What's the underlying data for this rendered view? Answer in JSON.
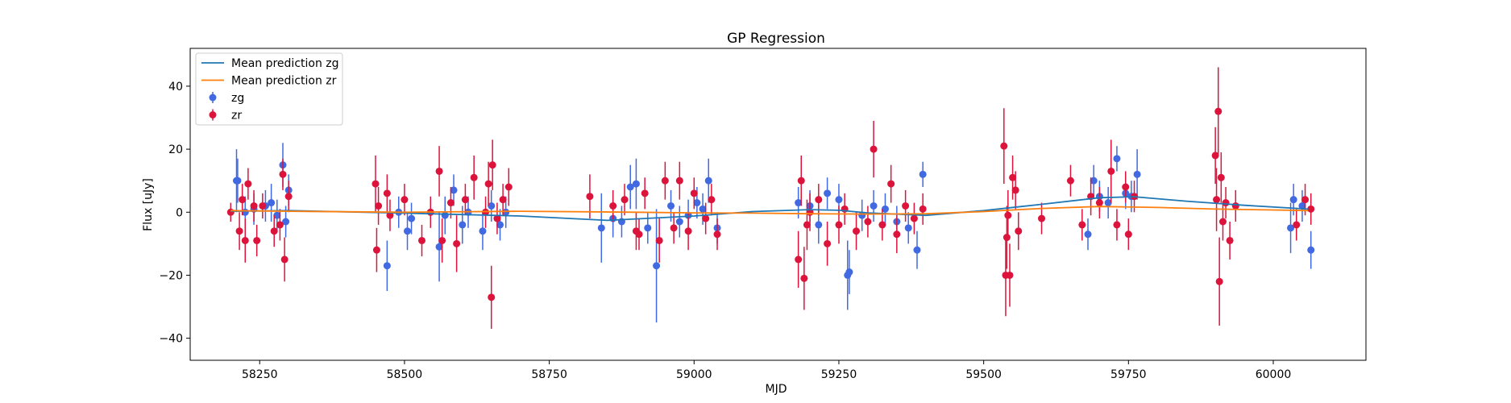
{
  "chart_data": {
    "type": "scatter",
    "title": "GP Regression",
    "xlabel": "MJD",
    "ylabel": "Flux [uJy]",
    "xlim": [
      58130,
      60160
    ],
    "ylim": [
      -47,
      52
    ],
    "xticks": [
      58250,
      58500,
      58750,
      59000,
      59250,
      59500,
      59750,
      60000
    ],
    "yticks": [
      -40,
      -20,
      0,
      20,
      40
    ],
    "legend_position": "upper-left",
    "legend": [
      {
        "label": "Mean prediction zg",
        "kind": "line",
        "color": "#1f77b4"
      },
      {
        "label": "Mean prediction zr",
        "kind": "line",
        "color": "#ff7f0e"
      },
      {
        "label": "zg",
        "kind": "errorbar",
        "color": "#4169e1"
      },
      {
        "label": "zr",
        "kind": "errorbar",
        "color": "#dc143c"
      }
    ],
    "lines": [
      {
        "name": "Mean prediction zg",
        "color": "#1f77b4",
        "x": [
          58200,
          58300,
          58500,
          58700,
          58850,
          59000,
          59100,
          59200,
          59250,
          59300,
          59400,
          59500,
          59600,
          59700,
          59760,
          59850,
          59950,
          60060
        ],
        "y": [
          0.3,
          0.5,
          -0.3,
          -1.2,
          -2.6,
          -1.2,
          0.2,
          0.8,
          0.6,
          -0.2,
          -1.0,
          0.5,
          2.5,
          4.6,
          4.9,
          3.5,
          2.2,
          1.0
        ]
      },
      {
        "name": "Mean prediction zr",
        "color": "#ff7f0e",
        "x": [
          58200,
          58300,
          58500,
          58700,
          58900,
          59000,
          59100,
          59200,
          59300,
          59400,
          59500,
          59600,
          59700,
          59800,
          59900,
          60000,
          60060
        ],
        "y": [
          0.5,
          0.3,
          0.0,
          0.3,
          0.0,
          -0.2,
          -0.3,
          -0.5,
          -0.6,
          -0.5,
          0.2,
          1.2,
          1.8,
          1.5,
          1.0,
          0.7,
          0.5
        ]
      }
    ],
    "series": [
      {
        "name": "zg",
        "color": "#4169e1",
        "points": [
          {
            "x": 58210,
            "y": 10,
            "err": 10
          },
          {
            "x": 58212,
            "y": 10,
            "err": 7
          },
          {
            "x": 58225,
            "y": 0,
            "err": 5
          },
          {
            "x": 58240,
            "y": 1,
            "err": 5
          },
          {
            "x": 58260,
            "y": 2,
            "err": 5
          },
          {
            "x": 58270,
            "y": 3,
            "err": 6
          },
          {
            "x": 58280,
            "y": -1,
            "err": 5
          },
          {
            "x": 58290,
            "y": 15,
            "err": 7
          },
          {
            "x": 58295,
            "y": -3,
            "err": 5
          },
          {
            "x": 58300,
            "y": 7,
            "err": 5
          },
          {
            "x": 58470,
            "y": -17,
            "err": 8
          },
          {
            "x": 58490,
            "y": 0,
            "err": 5
          },
          {
            "x": 58505,
            "y": -6,
            "err": 6
          },
          {
            "x": 58512,
            "y": -2,
            "err": 5
          },
          {
            "x": 58560,
            "y": -11,
            "err": 11
          },
          {
            "x": 58570,
            "y": -1,
            "err": 6
          },
          {
            "x": 58585,
            "y": 7,
            "err": 5
          },
          {
            "x": 58600,
            "y": -4,
            "err": 6
          },
          {
            "x": 58610,
            "y": 0,
            "err": 5
          },
          {
            "x": 58635,
            "y": -6,
            "err": 6
          },
          {
            "x": 58650,
            "y": 2,
            "err": 5
          },
          {
            "x": 58665,
            "y": -4,
            "err": 5
          },
          {
            "x": 58675,
            "y": 0,
            "err": 5
          },
          {
            "x": 58840,
            "y": -5,
            "err": 11
          },
          {
            "x": 58860,
            "y": -2,
            "err": 6
          },
          {
            "x": 58875,
            "y": -3,
            "err": 5
          },
          {
            "x": 58890,
            "y": 8,
            "err": 7
          },
          {
            "x": 58900,
            "y": 9,
            "err": 8
          },
          {
            "x": 58920,
            "y": -5,
            "err": 5
          },
          {
            "x": 58935,
            "y": -17,
            "err": 18
          },
          {
            "x": 58960,
            "y": 2,
            "err": 5
          },
          {
            "x": 58975,
            "y": -3,
            "err": 5
          },
          {
            "x": 58990,
            "y": -1,
            "err": 5
          },
          {
            "x": 59005,
            "y": 3,
            "err": 5
          },
          {
            "x": 59015,
            "y": 1,
            "err": 5
          },
          {
            "x": 59025,
            "y": 10,
            "err": 7
          },
          {
            "x": 59040,
            "y": -5,
            "err": 5
          },
          {
            "x": 59180,
            "y": 3,
            "err": 5
          },
          {
            "x": 59200,
            "y": 2,
            "err": 5
          },
          {
            "x": 59215,
            "y": -4,
            "err": 6
          },
          {
            "x": 59230,
            "y": 6,
            "err": 5
          },
          {
            "x": 59250,
            "y": 4,
            "err": 5
          },
          {
            "x": 59265,
            "y": -20,
            "err": 11
          },
          {
            "x": 59268,
            "y": -19,
            "err": 7
          },
          {
            "x": 59290,
            "y": -1,
            "err": 5
          },
          {
            "x": 59310,
            "y": 2,
            "err": 5
          },
          {
            "x": 59330,
            "y": 1,
            "err": 5
          },
          {
            "x": 59350,
            "y": -3,
            "err": 5
          },
          {
            "x": 59370,
            "y": -5,
            "err": 5
          },
          {
            "x": 59385,
            "y": -12,
            "err": 6
          },
          {
            "x": 59395,
            "y": 12,
            "err": 4
          },
          {
            "x": 59680,
            "y": -7,
            "err": 5
          },
          {
            "x": 59690,
            "y": 10,
            "err": 5
          },
          {
            "x": 59700,
            "y": 5,
            "err": 5
          },
          {
            "x": 59715,
            "y": 3,
            "err": 5
          },
          {
            "x": 59730,
            "y": 17,
            "err": 4
          },
          {
            "x": 59745,
            "y": 6,
            "err": 5
          },
          {
            "x": 59755,
            "y": 5,
            "err": 5
          },
          {
            "x": 59765,
            "y": 12,
            "err": 8
          },
          {
            "x": 60030,
            "y": -5,
            "err": 8
          },
          {
            "x": 60035,
            "y": 4,
            "err": 5
          },
          {
            "x": 60050,
            "y": 2,
            "err": 5
          },
          {
            "x": 60065,
            "y": -12,
            "err": 6
          }
        ]
      },
      {
        "name": "zr",
        "color": "#dc143c",
        "points": [
          {
            "x": 58200,
            "y": 0,
            "err": 3
          },
          {
            "x": 58215,
            "y": -6,
            "err": 6
          },
          {
            "x": 58220,
            "y": 4,
            "err": 5
          },
          {
            "x": 58225,
            "y": -9,
            "err": 7
          },
          {
            "x": 58230,
            "y": 9,
            "err": 5
          },
          {
            "x": 58240,
            "y": 2,
            "err": 5
          },
          {
            "x": 58245,
            "y": -9,
            "err": 5
          },
          {
            "x": 58255,
            "y": 2,
            "err": 4
          },
          {
            "x": 58275,
            "y": -6,
            "err": 5
          },
          {
            "x": 58285,
            "y": -4,
            "err": 5
          },
          {
            "x": 58290,
            "y": 12,
            "err": 5
          },
          {
            "x": 58293,
            "y": -15,
            "err": 7
          },
          {
            "x": 58300,
            "y": 5,
            "err": 5
          },
          {
            "x": 58450,
            "y": 9,
            "err": 9
          },
          {
            "x": 58452,
            "y": -12,
            "err": 7
          },
          {
            "x": 58455,
            "y": 2,
            "err": 6
          },
          {
            "x": 58470,
            "y": 6,
            "err": 6
          },
          {
            "x": 58475,
            "y": -1,
            "err": 5
          },
          {
            "x": 58500,
            "y": 4,
            "err": 5
          },
          {
            "x": 58530,
            "y": -9,
            "err": 5
          },
          {
            "x": 58545,
            "y": 0,
            "err": 5
          },
          {
            "x": 58560,
            "y": 13,
            "err": 8
          },
          {
            "x": 58565,
            "y": -9,
            "err": 7
          },
          {
            "x": 58580,
            "y": 3,
            "err": 5
          },
          {
            "x": 58590,
            "y": -10,
            "err": 9
          },
          {
            "x": 58605,
            "y": 4,
            "err": 5
          },
          {
            "x": 58620,
            "y": 11,
            "err": 7
          },
          {
            "x": 58640,
            "y": 0,
            "err": 5
          },
          {
            "x": 58645,
            "y": 9,
            "err": 7
          },
          {
            "x": 58650,
            "y": -27,
            "err": 10
          },
          {
            "x": 58652,
            "y": 15,
            "err": 8
          },
          {
            "x": 58660,
            "y": -2,
            "err": 5
          },
          {
            "x": 58670,
            "y": 4,
            "err": 5
          },
          {
            "x": 58680,
            "y": 8,
            "err": 6
          },
          {
            "x": 58820,
            "y": 5,
            "err": 7
          },
          {
            "x": 58860,
            "y": 2,
            "err": 5
          },
          {
            "x": 58880,
            "y": 4,
            "err": 5
          },
          {
            "x": 58900,
            "y": -6,
            "err": 6
          },
          {
            "x": 58905,
            "y": -7,
            "err": 5
          },
          {
            "x": 58915,
            "y": 6,
            "err": 5
          },
          {
            "x": 58940,
            "y": -9,
            "err": 7
          },
          {
            "x": 58950,
            "y": 10,
            "err": 6
          },
          {
            "x": 58965,
            "y": -5,
            "err": 5
          },
          {
            "x": 58975,
            "y": 10,
            "err": 6
          },
          {
            "x": 58990,
            "y": -6,
            "err": 6
          },
          {
            "x": 59000,
            "y": 6,
            "err": 5
          },
          {
            "x": 59020,
            "y": -2,
            "err": 5
          },
          {
            "x": 59030,
            "y": 4,
            "err": 5
          },
          {
            "x": 59040,
            "y": -7,
            "err": 5
          },
          {
            "x": 59180,
            "y": -15,
            "err": 9
          },
          {
            "x": 59185,
            "y": 10,
            "err": 8
          },
          {
            "x": 59190,
            "y": -21,
            "err": 10
          },
          {
            "x": 59195,
            "y": -4,
            "err": 8
          },
          {
            "x": 59200,
            "y": 0,
            "err": 6
          },
          {
            "x": 59215,
            "y": 4,
            "err": 5
          },
          {
            "x": 59230,
            "y": -10,
            "err": 7
          },
          {
            "x": 59250,
            "y": -4,
            "err": 6
          },
          {
            "x": 59260,
            "y": 1,
            "err": 5
          },
          {
            "x": 59280,
            "y": -6,
            "err": 6
          },
          {
            "x": 59300,
            "y": -3,
            "err": 5
          },
          {
            "x": 59310,
            "y": 20,
            "err": 9
          },
          {
            "x": 59325,
            "y": -4,
            "err": 5
          },
          {
            "x": 59340,
            "y": 9,
            "err": 6
          },
          {
            "x": 59350,
            "y": -7,
            "err": 6
          },
          {
            "x": 59365,
            "y": 2,
            "err": 5
          },
          {
            "x": 59380,
            "y": -2,
            "err": 5
          },
          {
            "x": 59395,
            "y": 1,
            "err": 5
          },
          {
            "x": 59535,
            "y": 21,
            "err": 12
          },
          {
            "x": 59538,
            "y": -20,
            "err": 13
          },
          {
            "x": 59540,
            "y": -8,
            "err": 10
          },
          {
            "x": 59542,
            "y": -1,
            "err": 8
          },
          {
            "x": 59545,
            "y": -20,
            "err": 10
          },
          {
            "x": 59550,
            "y": 11,
            "err": 7
          },
          {
            "x": 59555,
            "y": 7,
            "err": 6
          },
          {
            "x": 59560,
            "y": -6,
            "err": 6
          },
          {
            "x": 59600,
            "y": -2,
            "err": 5
          },
          {
            "x": 59650,
            "y": 10,
            "err": 5
          },
          {
            "x": 59670,
            "y": -4,
            "err": 5
          },
          {
            "x": 59685,
            "y": 5,
            "err": 6
          },
          {
            "x": 59700,
            "y": 3,
            "err": 5
          },
          {
            "x": 59720,
            "y": 13,
            "err": 10
          },
          {
            "x": 59730,
            "y": -4,
            "err": 5
          },
          {
            "x": 59745,
            "y": 8,
            "err": 5
          },
          {
            "x": 59750,
            "y": -7,
            "err": 5
          },
          {
            "x": 59760,
            "y": 5,
            "err": 5
          },
          {
            "x": 59900,
            "y": 18,
            "err": 9
          },
          {
            "x": 59902,
            "y": 4,
            "err": 10
          },
          {
            "x": 59905,
            "y": 32,
            "err": 14
          },
          {
            "x": 59907,
            "y": -22,
            "err": 14
          },
          {
            "x": 59910,
            "y": 11,
            "err": 8
          },
          {
            "x": 59913,
            "y": -3,
            "err": 6
          },
          {
            "x": 59918,
            "y": 3,
            "err": 5
          },
          {
            "x": 59925,
            "y": -9,
            "err": 6
          },
          {
            "x": 59935,
            "y": 2,
            "err": 5
          },
          {
            "x": 60040,
            "y": -4,
            "err": 5
          },
          {
            "x": 60055,
            "y": 4,
            "err": 5
          },
          {
            "x": 60065,
            "y": 1,
            "err": 5
          }
        ]
      }
    ]
  }
}
